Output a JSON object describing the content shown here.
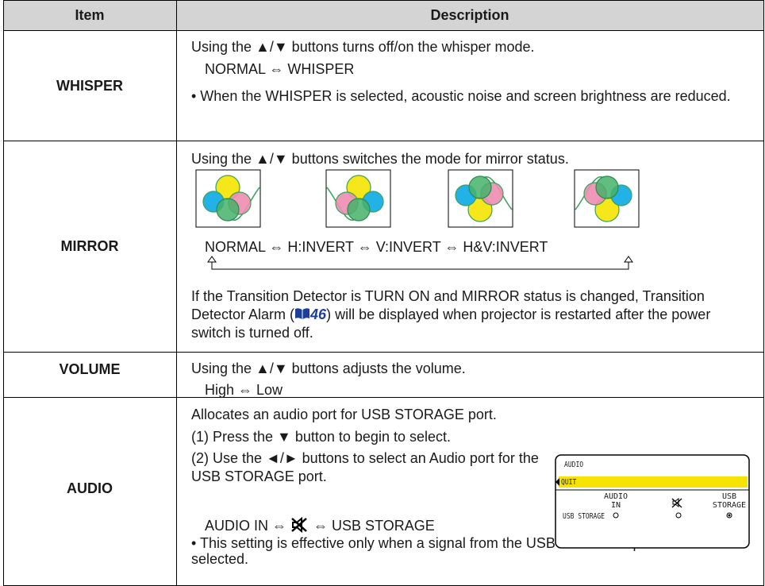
{
  "table": {
    "header": [
      "Item",
      "Description"
    ],
    "rows": [
      {
        "item": "WHISPER",
        "lines": [
          "Using the ▲/▼ buttons turns off/on the whisper mode.",
          "NORMAL ⇔ WHISPER",
          "• When the WHISPER is selected, acoustic noise and screen brightness are reduced."
        ]
      },
      {
        "item": "MIRROR",
        "lines": [
          "Using the ▲/▼ buttons switches the mode for mirror status.",
          "NORMAL ⇔ H:INVERT ⇔ V:INVERT ⇔ H&V:INVERT"
        ],
        "note_before": "If the Transition Detector is TURN ON and MIRROR status is changed, Transition Detector Alarm (",
        "page_ref": "46",
        "note_after": ") will be displayed when projector is restarted after the power switch is turned off."
      },
      {
        "item": "VOLUME",
        "lines": [
          "Using the ▲/▼ buttons adjusts the volume.",
          "High ⇔ Low"
        ]
      },
      {
        "item": "AUDIO",
        "lines": [
          "Allocates an audio port for USB STORAGE port.",
          "(1) Press the ▼ button to begin to select.",
          "(2) Use the ◄/► buttons to select an Audio port for the USB STORAGE port."
        ],
        "sequence_start": "AUDIO IN ⇔",
        "sequence_end": "⇔ USB STORAGE",
        "note": "• This setting is effective only when a signal from the USB STORAGE port is selected.",
        "menu": {
          "title": "AUDIO",
          "quit": "QUIT",
          "row_label": "USB STORAGE",
          "options": [
            "AUDIO IN",
            "USB STORAGE"
          ]
        }
      }
    ]
  }
}
